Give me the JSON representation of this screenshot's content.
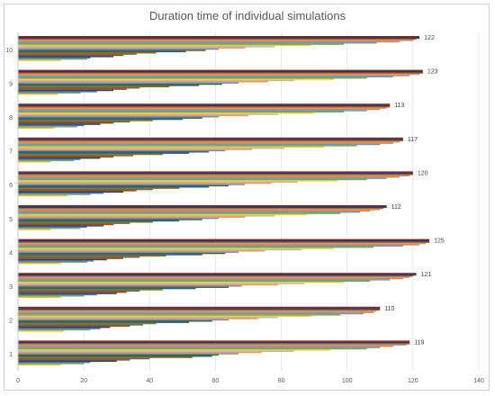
{
  "chart_data": {
    "type": "bar",
    "orientation": "horizontal",
    "title": "Duration time of individual simulations",
    "xlabel": "",
    "ylabel": "",
    "xlim": [
      0,
      140
    ],
    "x_ticks": [
      0,
      20,
      40,
      60,
      80,
      100,
      120,
      140
    ],
    "grid": true,
    "legend": "none",
    "categories": [
      "1",
      "2",
      "3",
      "4",
      "5",
      "6",
      "7",
      "8",
      "9",
      "10"
    ],
    "series_colors": [
      "#e6c229",
      "#7eab55",
      "#4472c4",
      "#264478",
      "#9e480e",
      "#636363",
      "#997300",
      "#255e91",
      "#43682b",
      "#698ed0",
      "#f1975a",
      "#b7b7b7",
      "#ffcd33",
      "#70ad47",
      "#5b9bd5",
      "#ed7d31",
      "#a5a5a5",
      "#c55a11",
      "#203864",
      "#7b2c2c"
    ],
    "bar_values": [
      [
        13,
        20,
        22,
        30,
        34,
        40,
        53,
        59,
        61,
        67,
        74,
        84,
        95,
        106,
        110,
        114,
        118,
        119,
        119,
        119
      ],
      [
        14,
        22,
        25,
        28,
        34,
        38,
        42,
        52,
        59,
        64,
        73,
        79,
        89,
        98,
        105,
        108,
        109,
        110,
        110,
        110
      ],
      [
        13,
        20,
        24,
        30,
        33,
        37,
        44,
        54,
        64,
        68,
        79,
        87,
        99,
        107,
        113,
        117,
        119,
        120,
        121,
        121
      ],
      [
        13,
        21,
        23,
        27,
        32,
        37,
        45,
        56,
        63,
        67,
        75,
        86,
        96,
        108,
        117,
        122,
        124,
        125,
        125,
        125
      ],
      [
        10,
        19,
        21,
        26,
        29,
        34,
        41,
        49,
        56,
        61,
        69,
        78,
        88,
        98,
        104,
        107,
        110,
        111,
        112,
        112
      ],
      [
        15,
        22,
        26,
        32,
        36,
        41,
        49,
        58,
        64,
        69,
        77,
        85,
        97,
        106,
        112,
        116,
        119,
        120,
        120,
        120
      ],
      [
        10,
        17,
        19,
        25,
        29,
        35,
        44,
        52,
        58,
        63,
        71,
        81,
        93,
        103,
        110,
        114,
        116,
        117,
        117,
        117
      ],
      [
        11,
        18,
        20,
        25,
        29,
        34,
        41,
        50,
        56,
        61,
        70,
        79,
        90,
        99,
        106,
        110,
        112,
        113,
        113,
        113
      ],
      [
        12,
        19,
        24,
        29,
        33,
        37,
        46,
        55,
        62,
        67,
        76,
        84,
        96,
        106,
        114,
        119,
        122,
        123,
        123,
        123
      ],
      [
        13,
        21,
        22,
        29,
        32,
        36,
        42,
        51,
        57,
        61,
        69,
        78,
        89,
        99,
        109,
        116,
        120,
        121,
        122,
        122
      ]
    ],
    "data_labels": [
      "119",
      "110",
      "121",
      "125",
      "112",
      "120",
      "117",
      "113",
      "123",
      "122"
    ]
  }
}
